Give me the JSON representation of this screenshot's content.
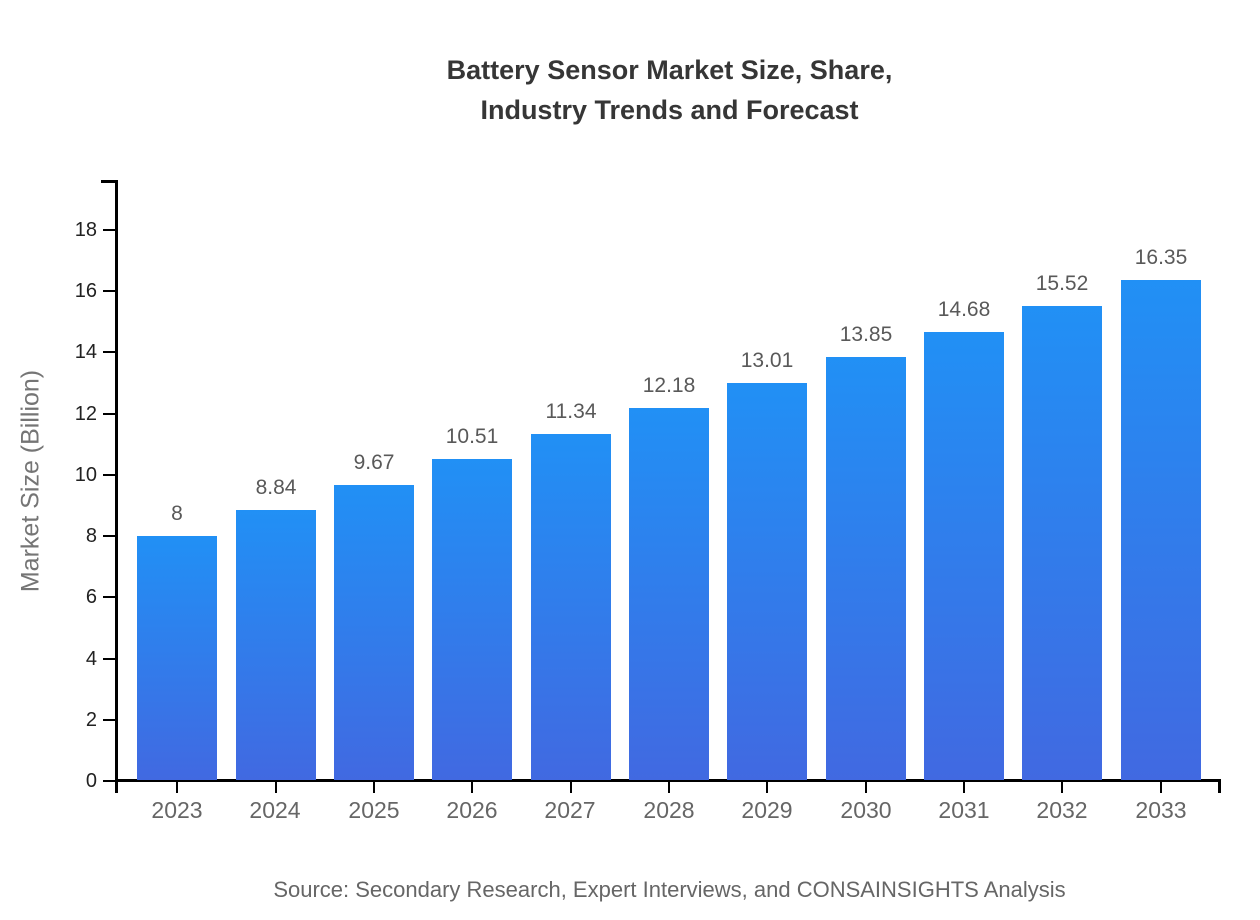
{
  "page": {
    "title_line1": "Battery Sensor Market Size, Share,",
    "title_line2": "Industry Trends and Forecast",
    "source": "Source: Secondary Research, Expert Interviews, and CONSAINSIGHTS Analysis"
  },
  "chart_data": {
    "type": "bar",
    "title": "Battery Sensor Market Size, Share, Industry Trends and Forecast",
    "xlabel": "",
    "ylabel": "Market Size (Billion)",
    "categories": [
      "2023",
      "2024",
      "2025",
      "2026",
      "2027",
      "2028",
      "2029",
      "2030",
      "2031",
      "2032",
      "2033"
    ],
    "values": [
      8,
      8.84,
      9.67,
      10.51,
      11.34,
      12.18,
      13.01,
      13.85,
      14.68,
      15.52,
      16.35
    ],
    "value_labels": [
      "8",
      "8.84",
      "9.67",
      "10.51",
      "11.34",
      "12.18",
      "13.01",
      "13.85",
      "14.68",
      "15.52",
      "16.35"
    ],
    "yticks": [
      0,
      2,
      4,
      6,
      8,
      10,
      12,
      14,
      16,
      18
    ],
    "ylim": [
      0,
      19.6
    ],
    "grid": false,
    "legend": "none",
    "colors": {
      "bar_gradient_top": "#2190f5",
      "bar_gradient_bottom": "#4169e1",
      "axis": "#000000",
      "y_tick_label": "#222222",
      "x_tick_label": "#666666",
      "value_label": "#595959",
      "title": "#363636",
      "ylabel": "#757575",
      "source": "#666666"
    }
  }
}
